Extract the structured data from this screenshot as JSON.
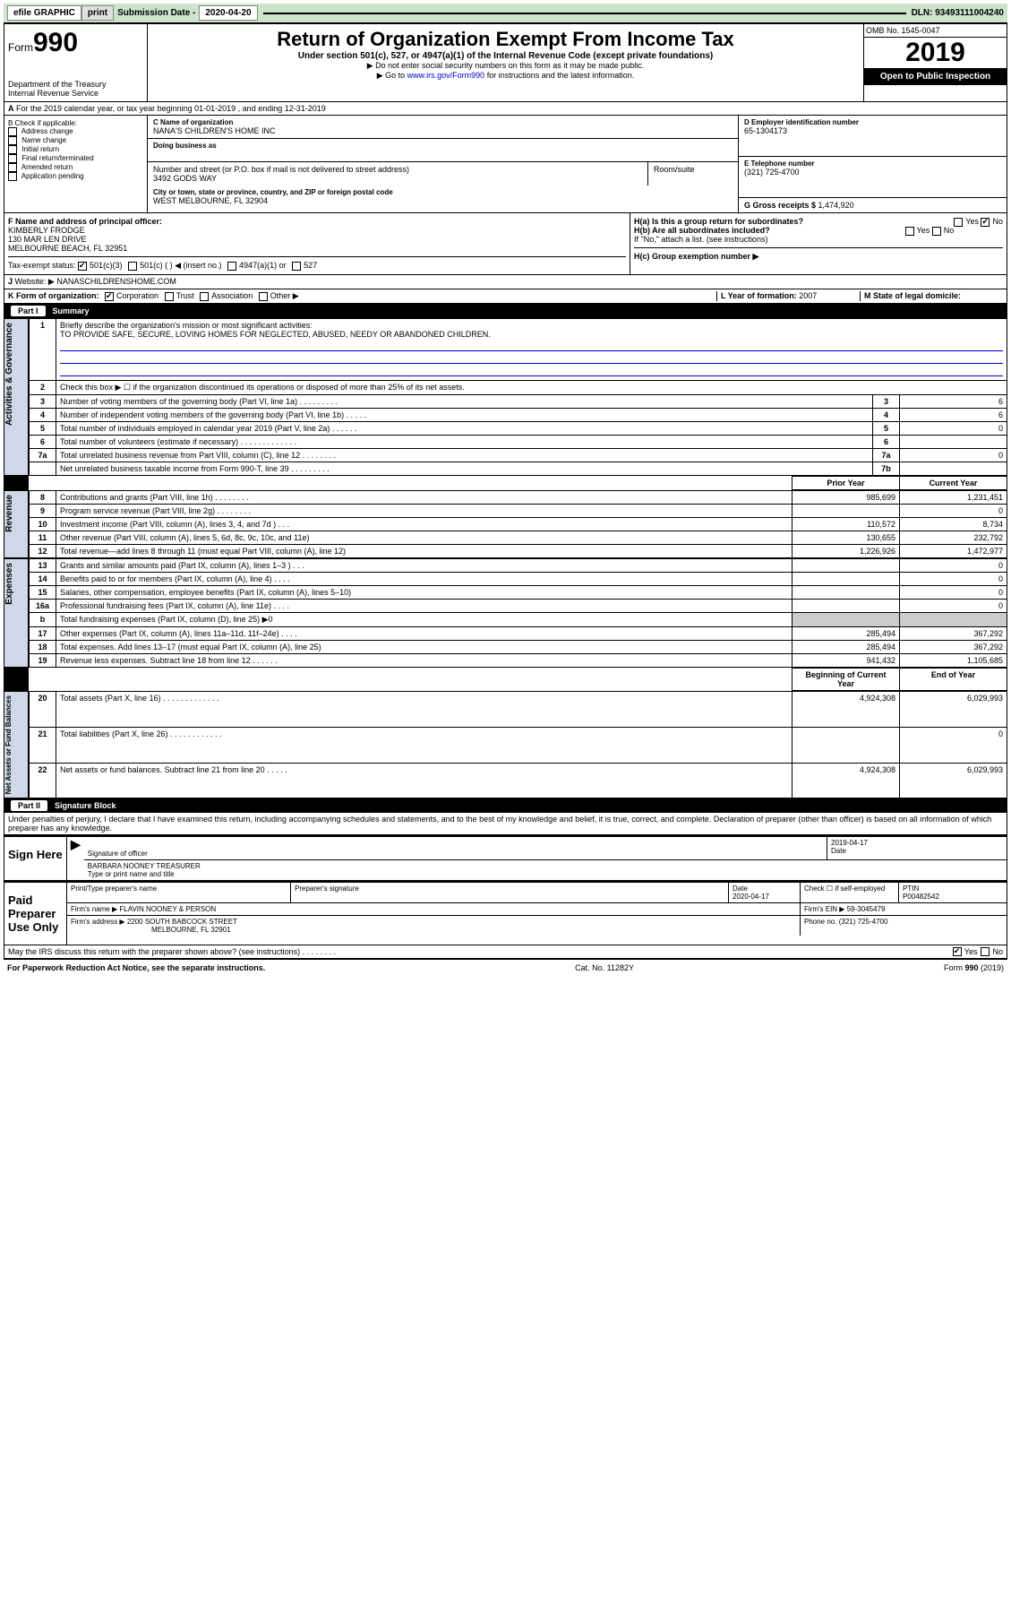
{
  "topbar": {
    "efile": "efile GRAPHIC",
    "print": "print",
    "sub_label": "Submission Date - ",
    "sub_date": "2020-04-20",
    "dln_label": "DLN: ",
    "dln": "93493111004240"
  },
  "header": {
    "form_prefix": "Form",
    "form_num": "990",
    "dept": "Department of the Treasury\nInternal Revenue Service",
    "title": "Return of Organization Exempt From Income Tax",
    "sub1": "Under section 501(c), 527, or 4947(a)(1) of the Internal Revenue Code (except private foundations)",
    "sub2": "▶ Do not enter social security numbers on this form as it may be made public.",
    "sub3_pre": "▶ Go to ",
    "sub3_link": "www.irs.gov/Form990",
    "sub3_post": " for instructions and the latest information.",
    "omb": "OMB No. 1545-0047",
    "year": "2019",
    "open": "Open to Public Inspection"
  },
  "line_a": "For the 2019 calendar year, or tax year beginning 01-01-2019    , and ending 12-31-2019",
  "box_b": {
    "hdr": "B Check if applicable:",
    "opts": [
      "Address change",
      "Name change",
      "Initial return",
      "Final return/terminated",
      "Amended return",
      "Application pending"
    ]
  },
  "box_c": {
    "lbl_name": "C Name of organization",
    "name": "NANA'S CHILDREN'S HOME INC",
    "lbl_dba": "Doing business as",
    "lbl_addr": "Number and street (or P.O. box if mail is not delivered to street address)",
    "addr": "3492 GODS WAY",
    "lbl_room": "Room/suite",
    "lbl_city": "City or town, state or province, country, and ZIP or foreign postal code",
    "city": "WEST MELBOURNE, FL  32904"
  },
  "box_d": {
    "lbl": "D Employer identification number",
    "val": "65-1304173"
  },
  "box_e": {
    "lbl": "E Telephone number",
    "val": "(321) 725-4700"
  },
  "box_g": {
    "lbl": "G Gross receipts $ ",
    "val": "1,474,920"
  },
  "box_f": {
    "lbl": "F  Name and address of principal officer:",
    "name": "KIMBERLY FRODGE",
    "addr1": "130 MAR LEN DRIVE",
    "addr2": "MELBOURNE BEACH, FL  32951"
  },
  "box_h": {
    "a": "H(a)  Is this a group return for subordinates?",
    "b": "H(b)  Are all subordinates included?",
    "b2": "If \"No,\" attach a list. (see instructions)",
    "c": "H(c)  Group exemption number ▶",
    "yes": "Yes",
    "no": "No"
  },
  "tax_exempt": {
    "lbl": "Tax-exempt status:",
    "o1": "501(c)(3)",
    "o2": "501(c) (   ) ◀ (insert no.)",
    "o3": "4947(a)(1) or",
    "o4": "527"
  },
  "website": {
    "lbl": "Website: ▶",
    "val": "NANASCHILDRENSHOME.COM"
  },
  "line_k": {
    "lbl": "K Form of organization:",
    "o1": "Corporation",
    "o2": "Trust",
    "o3": "Association",
    "o4": "Other ▶"
  },
  "line_l": {
    "lbl": "L Year of formation: ",
    "val": "2007"
  },
  "line_m": {
    "lbl": "M State of legal domicile:"
  },
  "part1": {
    "num": "Part I",
    "title": "Summary"
  },
  "summary": {
    "l1": "Briefly describe the organization's mission or most significant activities:",
    "mission": "TO PROVIDE SAFE, SECURE, LOVING HOMES FOR NEGLECTED, ABUSED, NEEDY OR ABANDONED CHILDREN.",
    "l2": "Check this box ▶ ☐  if the organization discontinued its operations or disposed of more than 25% of its net assets.",
    "l3": "Number of voting members of the governing body (Part VI, line 1a)   .   .   .   .   .   .   .   .   .",
    "l4": "Number of independent voting members of the governing body (Part VI, line 1b)   .   .   .   .   .",
    "l5": "Total number of individuals employed in calendar year 2019 (Part V, line 2a)   .   .   .   .   .   .",
    "l6": "Total number of volunteers (estimate if necessary)   .   .   .   .   .   .   .   .   .   .   .   .   .",
    "l7a": "Total unrelated business revenue from Part VIII, column (C), line 12   .   .   .   .   .   .   .   .",
    "l7b": "Net unrelated business taxable income from Form 990-T, line 39   .   .   .   .   .   .   .   .   .",
    "v3": "6",
    "v4": "6",
    "v5": "0",
    "v6": "",
    "v7a": "0",
    "v7b": "",
    "hdr_prior": "Prior Year",
    "hdr_curr": "Current Year",
    "rows_rev": [
      {
        "n": "8",
        "d": "Contributions and grants (Part VIII, line 1h)   .   .   .   .   .   .   .   .",
        "p": "985,699",
        "c": "1,231,451"
      },
      {
        "n": "9",
        "d": "Program service revenue (Part VIII, line 2g)   .   .   .   .   .   .   .   .",
        "p": "",
        "c": "0"
      },
      {
        "n": "10",
        "d": "Investment income (Part VIII, column (A), lines 3, 4, and 7d )   .   .   .",
        "p": "110,572",
        "c": "8,734"
      },
      {
        "n": "11",
        "d": "Other revenue (Part VIII, column (A), lines 5, 6d, 8c, 9c, 10c, and 11e)",
        "p": "130,655",
        "c": "232,792"
      },
      {
        "n": "12",
        "d": "Total revenue—add lines 8 through 11 (must equal Part VIII, column (A), line 12)",
        "p": "1,226,926",
        "c": "1,472,977"
      }
    ],
    "rows_exp": [
      {
        "n": "13",
        "d": "Grants and similar amounts paid (Part IX, column (A), lines 1–3 )   .   .   .",
        "p": "",
        "c": "0"
      },
      {
        "n": "14",
        "d": "Benefits paid to or for members (Part IX, column (A), line 4)   .   .   .   .",
        "p": "",
        "c": "0"
      },
      {
        "n": "15",
        "d": "Salaries, other compensation, employee benefits (Part IX, column (A), lines 5–10)",
        "p": "",
        "c": "0"
      },
      {
        "n": "16a",
        "d": "Professional fundraising fees (Part IX, column (A), line 11e)   .   .   .   .",
        "p": "",
        "c": "0"
      },
      {
        "n": "b",
        "d": "Total fundraising expenses (Part IX, column (D), line 25) ▶0",
        "p": "__GREY__",
        "c": "__GREY__"
      },
      {
        "n": "17",
        "d": "Other expenses (Part IX, column (A), lines 11a–11d, 11f–24e)   .   .   .   .",
        "p": "285,494",
        "c": "367,292"
      },
      {
        "n": "18",
        "d": "Total expenses. Add lines 13–17 (must equal Part IX, column (A), line 25)",
        "p": "285,494",
        "c": "367,292"
      },
      {
        "n": "19",
        "d": "Revenue less expenses. Subtract line 18 from line 12   .   .   .   .   .   .",
        "p": "941,432",
        "c": "1,105,685"
      }
    ],
    "hdr_beg": "Beginning of Current Year",
    "hdr_end": "End of Year",
    "rows_net": [
      {
        "n": "20",
        "d": "Total assets (Part X, line 16)   .   .   .   .   .   .   .   .   .   .   .   .   .",
        "p": "4,924,308",
        "c": "6,029,993"
      },
      {
        "n": "21",
        "d": "Total liabilities (Part X, line 26)   .   .   .   .   .   .   .   .   .   .   .   .",
        "p": "",
        "c": "0"
      },
      {
        "n": "22",
        "d": "Net assets or fund balances. Subtract line 21 from line 20   .   .   .   .   .",
        "p": "4,924,308",
        "c": "6,029,993"
      }
    ],
    "side_gov": "Activities & Governance",
    "side_rev": "Revenue",
    "side_exp": "Expenses",
    "side_net": "Net Assets or Fund Balances"
  },
  "part2": {
    "num": "Part II",
    "title": "Signature Block"
  },
  "perjury": "Under penalties of perjury, I declare that I have examined this return, including accompanying schedules and statements, and to the best of my knowledge and belief, it is true, correct, and complete. Declaration of preparer (other than officer) is based on all information of which preparer has any knowledge.",
  "sign": {
    "here": "Sign Here",
    "sig_of": "Signature of officer",
    "date": "2019-04-17",
    "date_lbl": "Date",
    "name": "BARBARA NOONEY  TREASURER",
    "name_lbl": "Type or print name and title"
  },
  "paid": {
    "lbl": "Paid Preparer Use Only",
    "h1": "Print/Type preparer's name",
    "h2": "Preparer's signature",
    "h3": "Date",
    "h3v": "2020-04-17",
    "h4": "Check ☐ if self-employed",
    "h5": "PTIN",
    "h5v": "P00482542",
    "firm_lbl": "Firm's name    ▶ ",
    "firm": "FLAVIN NOONEY & PERSON",
    "ein_lbl": "Firm's EIN ▶ ",
    "ein": "59-3045479",
    "addr_lbl": "Firm's address ▶ ",
    "addr": "2200 SOUTH BABCOCK STREET",
    "addr2": "MELBOURNE, FL  32901",
    "phone_lbl": "Phone no. ",
    "phone": "(321) 725-4700"
  },
  "discuss": "May the IRS discuss this return with the preparer shown above? (see instructions)   .   .   .   .   .   .   .   .",
  "foot": {
    "l": "For Paperwork Reduction Act Notice, see the separate instructions.",
    "m": "Cat. No. 11282Y",
    "r": "Form 990 (2019)"
  }
}
